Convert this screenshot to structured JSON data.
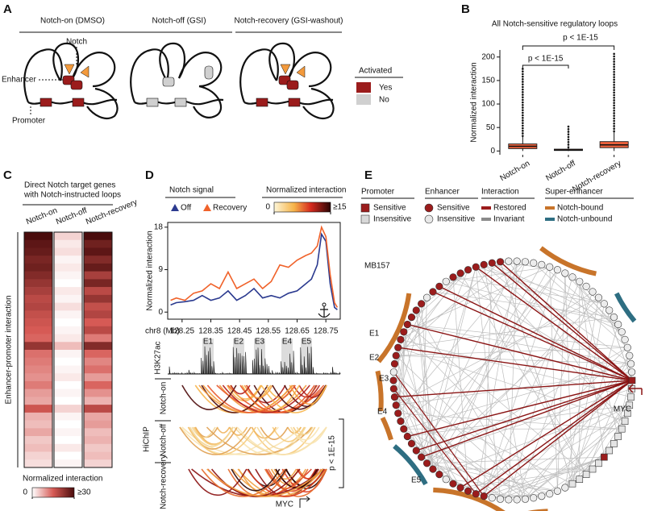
{
  "panel_a": {
    "label": "A",
    "conditions": [
      "Notch-on (DMSO)",
      "Notch-off (GSI)",
      "Notch-recovery (GSI-washout)"
    ],
    "notch": "Notch",
    "enhancer": "Enhancer",
    "promoter": "Promoter",
    "legend": {
      "title": "Activated",
      "yes": "Yes",
      "no": "No"
    }
  },
  "panel_b": {
    "label": "B"
  },
  "panel_c": {
    "label": "C",
    "subtitle": [
      "Direct Notch target genes",
      "with Notch-instructed loops"
    ],
    "row_axis": "Enhancer-promoter interaction"
  },
  "panel_d": {
    "label": "D",
    "signal_title": "Notch signal",
    "arc_colorbar": {
      "title": "Normalized interaction",
      "zlim": [
        0,
        15
      ],
      "ticks": [
        0,
        {
          "value": 15,
          "label": "≥15"
        }
      ]
    },
    "x_unit": "chr8  (Mb)",
    "track": "H3K27ac",
    "enhancers": [
      "E1",
      "E2",
      "E3",
      "E4",
      "E5"
    ],
    "assay": "HiChIP",
    "conditions": [
      "Notch-on",
      "Notch-off",
      "Notch-recovery"
    ],
    "pvalue": "p < 1E-15",
    "gene": "MYC"
  },
  "panel_e": {
    "label": "E",
    "legend": [
      {
        "title": "Promoter",
        "items": [
          "Sensitive",
          "Insensitive"
        ]
      },
      {
        "title": "Enhancer",
        "items": [
          "Sensitive",
          "Insensitive"
        ]
      },
      {
        "title": "Interaction",
        "items": [
          "Restored",
          "Invariant"
        ]
      },
      {
        "title": "Super-enhancer",
        "items": [
          "Notch-bound",
          "Notch-unbound"
        ]
      }
    ],
    "cell_line": "MB157",
    "enhancers": [
      "E1",
      "E2",
      "E3",
      "E4",
      "E5"
    ],
    "gene": "MYC"
  },
  "chart_data": [
    {
      "type": "box",
      "title": "All Notch-sensitive regulatory loops",
      "ylabel": "Normalized interaction",
      "categories": [
        "Notch-on",
        "Notch-off",
        "Notch-recovery"
      ],
      "color": "#e8603c",
      "boxes": [
        {
          "whislo": 0,
          "q1": 5,
          "median": 10,
          "q3": 15,
          "whishi": 32,
          "max": 175
        },
        {
          "whislo": 0,
          "q1": 1,
          "median": 2,
          "q3": 4,
          "whishi": 8,
          "max": 55
        },
        {
          "whislo": 0,
          "q1": 7,
          "median": 13,
          "q3": 20,
          "whishi": 42,
          "max": 210
        }
      ],
      "ylim": [
        -8,
        215
      ],
      "yticks": [
        0,
        50,
        100,
        150,
        200
      ],
      "annotations": [
        "p < 1E-15",
        "p < 1E-15"
      ]
    },
    {
      "type": "heatmap",
      "series": [
        {
          "name": "Notch-on",
          "values": [
            30,
            28,
            27,
            25,
            26,
            24,
            22,
            20,
            18,
            19,
            17,
            16,
            15,
            14,
            22,
            13,
            12,
            11,
            10,
            12,
            9,
            8,
            16,
            7,
            6,
            8,
            5,
            6,
            4,
            3
          ]
        },
        {
          "name": "Notch-off",
          "values": [
            4,
            2,
            3,
            1,
            2,
            1,
            0,
            2,
            1,
            3,
            1,
            0,
            1,
            2,
            6,
            1,
            0,
            1,
            2,
            0,
            1,
            0,
            4,
            1,
            0,
            1,
            0,
            2,
            0,
            1
          ]
        },
        {
          "name": "Notch-recovery",
          "values": [
            30,
            26,
            28,
            24,
            27,
            20,
            25,
            18,
            22,
            17,
            19,
            15,
            18,
            12,
            24,
            14,
            11,
            13,
            9,
            14,
            10,
            7,
            18,
            8,
            9,
            6,
            7,
            5,
            6,
            4
          ]
        }
      ],
      "colors": [
        "#ffffff",
        "#d65a55",
        "#4a0c0c"
      ],
      "colorbar": {
        "title": "Normalized interaction",
        "zlim": [
          0,
          30
        ],
        "ticks": [
          0,
          {
            "value": 30,
            "label": "≥30"
          }
        ]
      }
    },
    {
      "type": "line",
      "ylabel": "Normalized interaction",
      "x": [
        128.21,
        128.23,
        128.26,
        128.29,
        128.32,
        128.35,
        128.38,
        128.41,
        128.44,
        128.47,
        128.5,
        128.53,
        128.56,
        128.59,
        128.62,
        128.65,
        128.68,
        128.7,
        128.72,
        128.735,
        128.75,
        128.765,
        128.78,
        128.79
      ],
      "series": [
        {
          "name": "Off",
          "color": "#2b3a8f",
          "values": [
            1.5,
            2,
            2.2,
            2.5,
            3.5,
            2.5,
            3,
            4.5,
            2.5,
            3.5,
            5,
            3,
            3.5,
            3,
            4,
            4.5,
            6,
            7,
            10,
            16.5,
            15,
            6,
            1,
            0.5
          ]
        },
        {
          "name": "Recovery",
          "color": "#f0622a",
          "values": [
            2.5,
            3,
            2.5,
            4,
            4.5,
            6,
            5,
            8.5,
            5,
            6,
            7,
            5,
            6.5,
            10,
            9.5,
            11,
            12,
            12.5,
            14,
            18,
            16,
            8,
            2,
            1
          ]
        }
      ],
      "xlim": [
        128.2,
        128.8
      ],
      "xticks": [
        128.25,
        128.35,
        128.45,
        128.55,
        128.65,
        128.75
      ],
      "ylim": [
        -1.5,
        19
      ],
      "yticks": [
        0,
        9,
        18
      ]
    }
  ]
}
